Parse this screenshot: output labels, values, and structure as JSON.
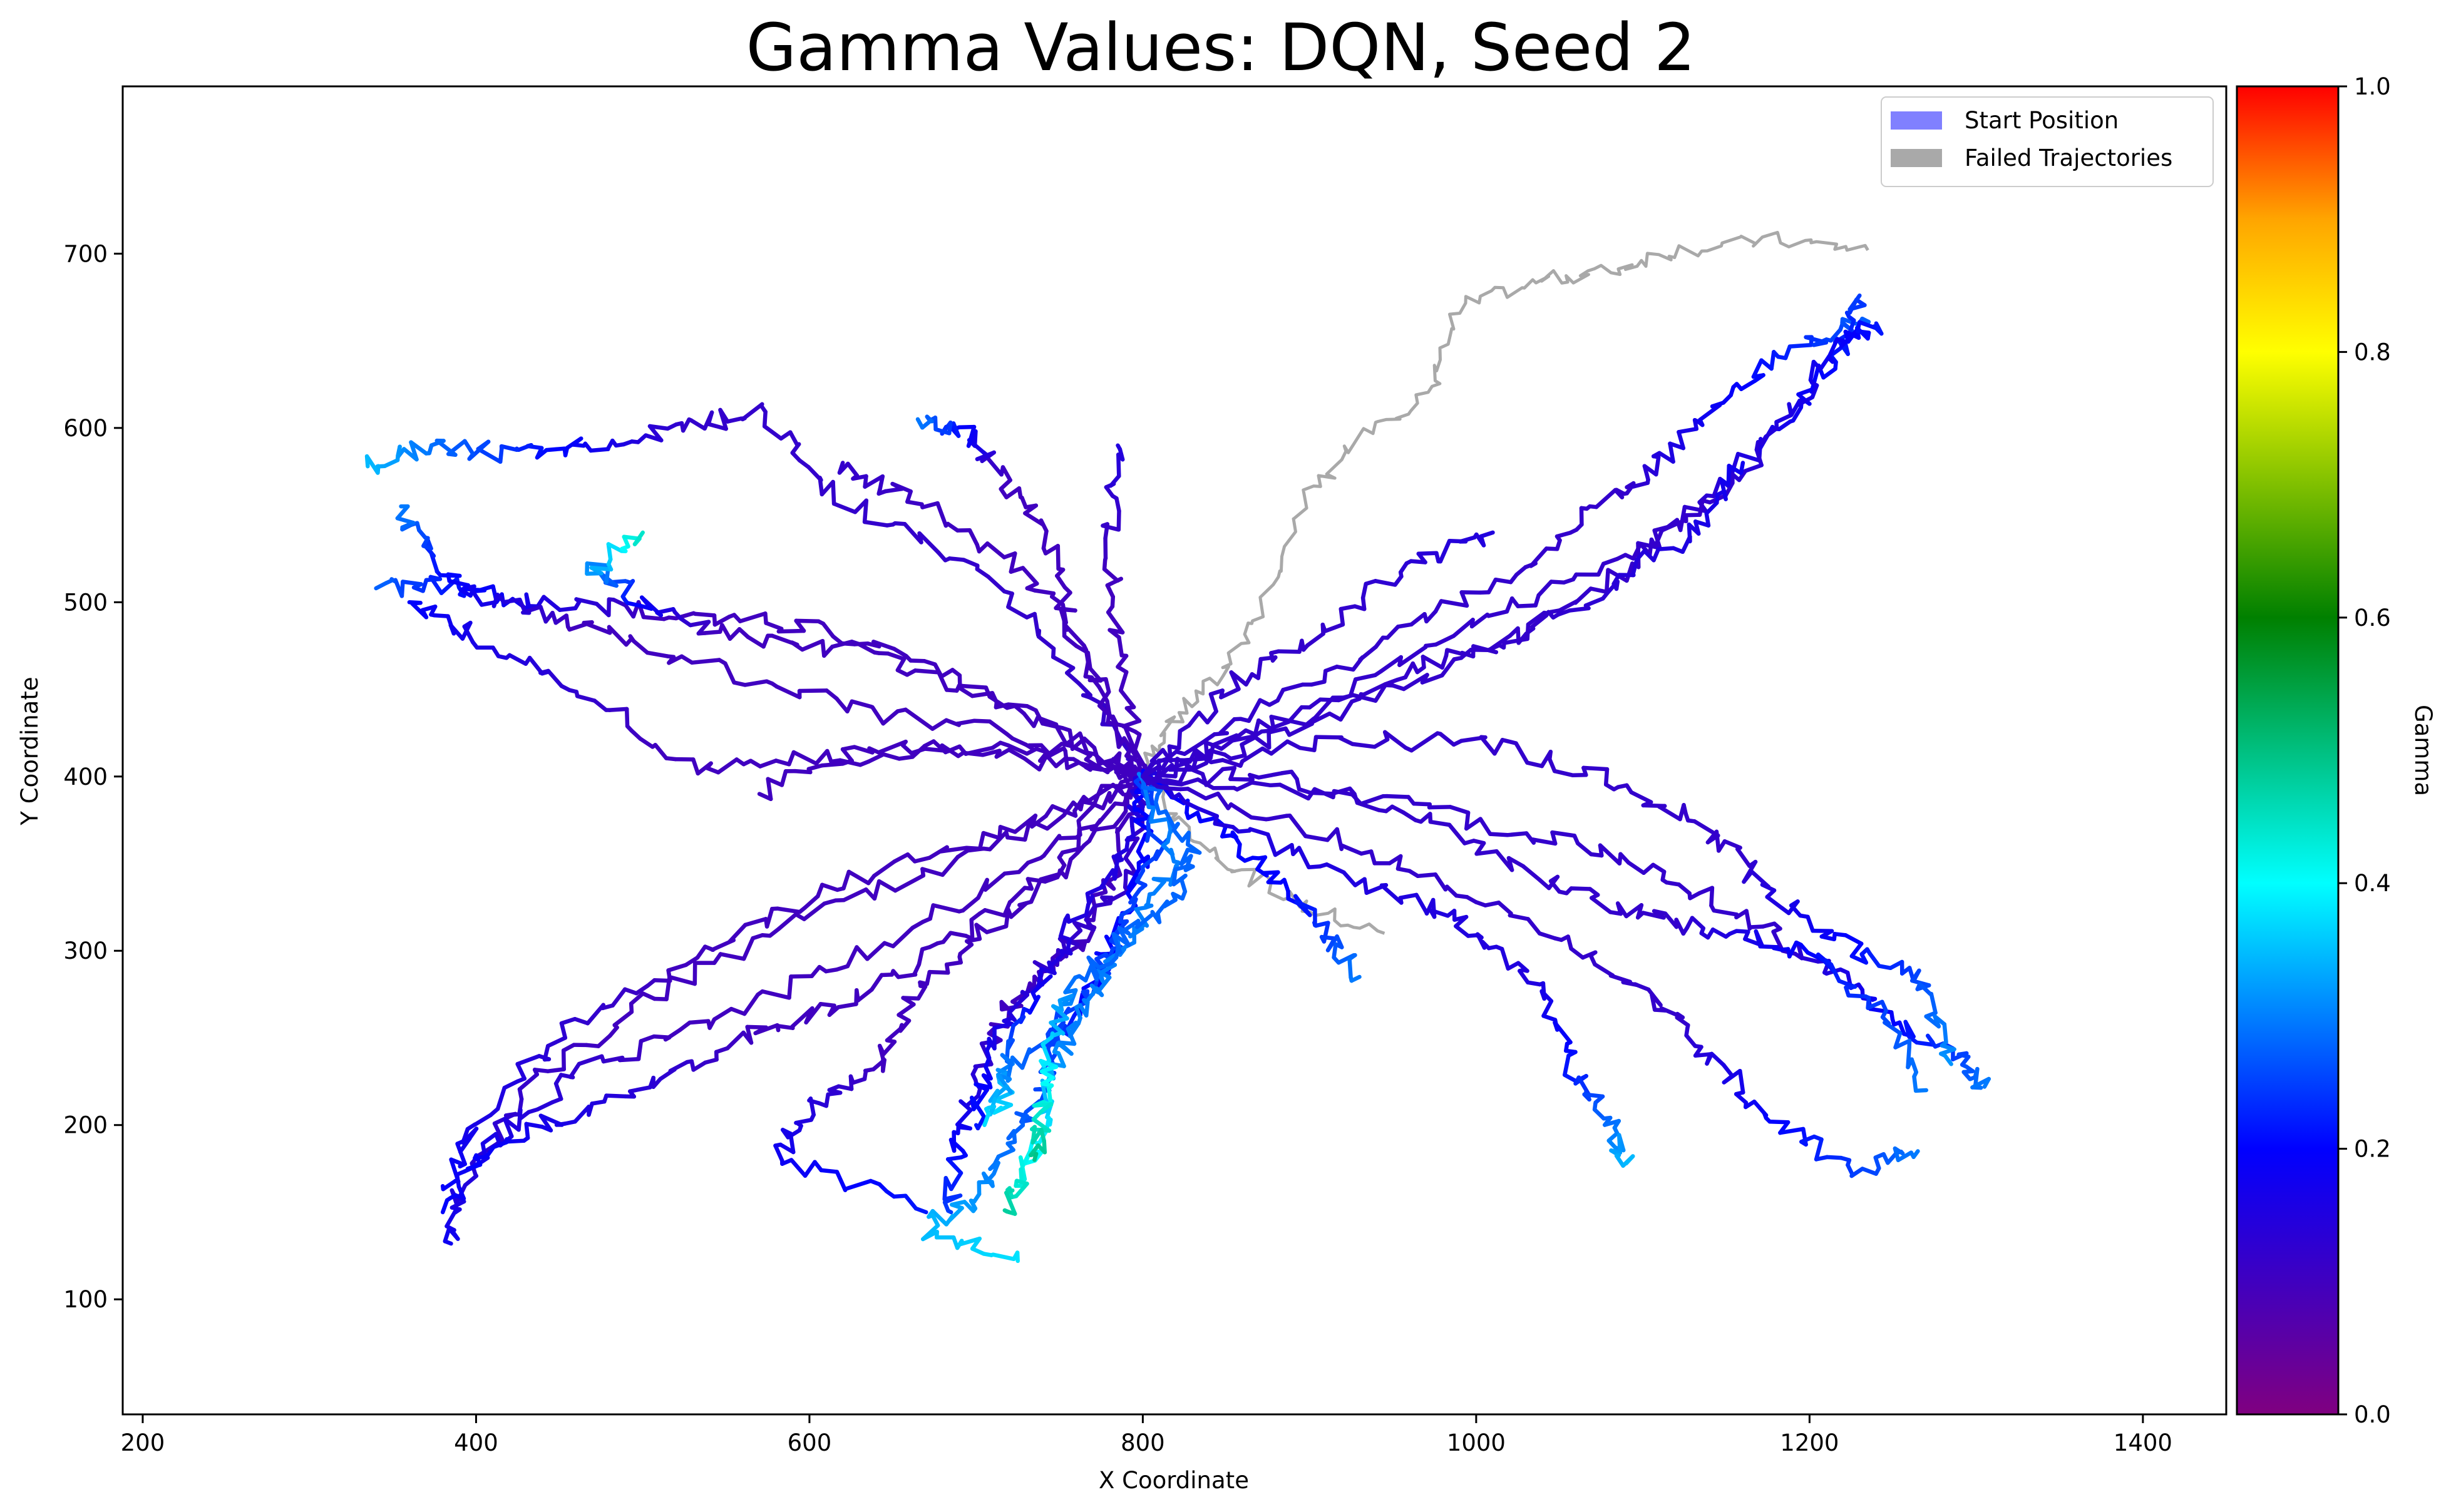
{
  "chart_data": {
    "type": "line",
    "title": "Gamma Values: DQN, Seed 2",
    "xlabel": "X Coordinate",
    "ylabel": "Y Coordinate",
    "xlim": [
      188,
      1450
    ],
    "ylim": [
      34,
      796
    ],
    "xticks": [
      200,
      400,
      600,
      800,
      1000,
      1200,
      1400
    ],
    "yticks": [
      100,
      200,
      300,
      400,
      500,
      600,
      700
    ],
    "grid": false,
    "legend": {
      "placement": "top-right",
      "entries": [
        {
          "label": "Start Position",
          "color": "#8080ff"
        },
        {
          "label": "Failed Trajectories",
          "color": "#a9a9a9"
        }
      ]
    },
    "colorbar": {
      "label": "Gamma",
      "range": [
        0,
        1
      ],
      "ticks": [
        "0.0",
        "0.2",
        "0.4",
        "0.6",
        "0.8",
        "1.0"
      ],
      "colormap": [
        {
          "v": 0.0,
          "color": "#800080"
        },
        {
          "v": 0.2,
          "color": "#0000ff"
        },
        {
          "v": 0.4,
          "color": "#00ffff"
        },
        {
          "v": 0.6,
          "color": "#008000"
        },
        {
          "v": 0.8,
          "color": "#ffff00"
        },
        {
          "v": 0.9,
          "color": "#ffa500"
        },
        {
          "v": 1.0,
          "color": "#ff0000"
        }
      ]
    },
    "start": [
      800,
      400
    ],
    "failed_trajectories": [
      {
        "points": [
          [
            800,
            400
          ],
          [
            815,
            430
          ],
          [
            845,
            455
          ],
          [
            870,
            495
          ],
          [
            900,
            560
          ],
          [
            935,
            600
          ],
          [
            975,
            620
          ],
          [
            990,
            670
          ],
          [
            1040,
            685
          ],
          [
            1080,
            690
          ],
          [
            1120,
            702
          ],
          [
            1180,
            708
          ],
          [
            1235,
            702
          ]
        ]
      },
      {
        "points": [
          [
            800,
            400
          ],
          [
            825,
            370
          ],
          [
            860,
            345
          ],
          [
            900,
            325
          ],
          [
            945,
            310
          ]
        ]
      }
    ],
    "trajectories": [
      {
        "gamma_start": 0.12,
        "gamma_end": 0.35,
        "points": [
          [
            800,
            400
          ],
          [
            760,
            460
          ],
          [
            700,
            520
          ],
          [
            620,
            560
          ],
          [
            570,
            610
          ],
          [
            520,
            600
          ],
          [
            470,
            590
          ],
          [
            420,
            585
          ],
          [
            370,
            590
          ],
          [
            335,
            578
          ]
        ]
      },
      {
        "gamma_start": 0.1,
        "gamma_end": 0.28,
        "points": [
          [
            800,
            400
          ],
          [
            740,
            430
          ],
          [
            660,
            470
          ],
          [
            580,
            490
          ],
          [
            500,
            495
          ],
          [
            430,
            500
          ],
          [
            380,
            510
          ],
          [
            340,
            508
          ]
        ]
      },
      {
        "gamma_start": 0.1,
        "gamma_end": 0.3,
        "points": [
          [
            800,
            400
          ],
          [
            720,
            425
          ],
          [
            620,
            440
          ],
          [
            520,
            470
          ],
          [
            450,
            490
          ],
          [
            400,
            505
          ],
          [
            370,
            530
          ],
          [
            355,
            555
          ]
        ]
      },
      {
        "gamma_start": 0.1,
        "gamma_end": 0.45,
        "points": [
          [
            800,
            400
          ],
          [
            720,
            440
          ],
          [
            640,
            470
          ],
          [
            560,
            480
          ],
          [
            500,
            500
          ],
          [
            470,
            520
          ],
          [
            500,
            540
          ]
        ]
      },
      {
        "gamma_start": 0.1,
        "gamma_end": 0.2,
        "points": [
          [
            800,
            400
          ],
          [
            720,
            420
          ],
          [
            620,
            410
          ],
          [
            530,
            405
          ],
          [
            460,
            450
          ],
          [
            400,
            480
          ],
          [
            360,
            500
          ]
        ]
      },
      {
        "gamma_start": 0.1,
        "gamma_end": 0.3,
        "points": [
          [
            800,
            400
          ],
          [
            760,
            480
          ],
          [
            740,
            540
          ],
          [
            710,
            580
          ],
          [
            690,
            600
          ],
          [
            665,
            605
          ]
        ]
      },
      {
        "gamma_start": 0.1,
        "gamma_end": 0.15,
        "points": [
          [
            800,
            400
          ],
          [
            785,
            470
          ],
          [
            780,
            540
          ],
          [
            785,
            590
          ]
        ]
      },
      {
        "gamma_start": 0.1,
        "gamma_end": 0.12,
        "points": [
          [
            800,
            400
          ],
          [
            770,
            460
          ],
          [
            730,
            520
          ],
          [
            660,
            560
          ],
          [
            620,
            580
          ]
        ]
      },
      {
        "gamma_start": 0.1,
        "gamma_end": 0.1,
        "points": [
          [
            800,
            400
          ],
          [
            730,
            410
          ],
          [
            640,
            420
          ],
          [
            570,
            390
          ]
        ]
      },
      {
        "gamma_start": 0.1,
        "gamma_end": 0.2,
        "points": [
          [
            800,
            400
          ],
          [
            720,
            370
          ],
          [
            620,
            340
          ],
          [
            540,
            300
          ],
          [
            460,
            260
          ],
          [
            400,
            200
          ],
          [
            380,
            165
          ]
        ]
      },
      {
        "gamma_start": 0.1,
        "gamma_end": 0.18,
        "points": [
          [
            800,
            400
          ],
          [
            710,
            360
          ],
          [
            600,
            320
          ],
          [
            500,
            270
          ],
          [
            430,
            220
          ],
          [
            390,
            160
          ],
          [
            385,
            132
          ]
        ]
      },
      {
        "gamma_start": 0.1,
        "gamma_end": 0.2,
        "points": [
          [
            800,
            400
          ],
          [
            730,
            350
          ],
          [
            640,
            300
          ],
          [
            540,
            260
          ],
          [
            460,
            230
          ],
          [
            410,
            190
          ],
          [
            380,
            150
          ]
        ]
      },
      {
        "gamma_start": 0.1,
        "gamma_end": 0.2,
        "points": [
          [
            800,
            400
          ],
          [
            740,
            340
          ],
          [
            680,
            300
          ],
          [
            620,
            270
          ],
          [
            560,
            250
          ],
          [
            500,
            220
          ],
          [
            440,
            200
          ],
          [
            395,
            175
          ]
        ]
      },
      {
        "gamma_start": 0.1,
        "gamma_end": 0.22,
        "points": [
          [
            800,
            400
          ],
          [
            760,
            350
          ],
          [
            700,
            310
          ],
          [
            660,
            270
          ],
          [
            640,
            230
          ],
          [
            600,
            210
          ],
          [
            580,
            180
          ],
          [
            670,
            150
          ]
        ]
      },
      {
        "gamma_start": 0.1,
        "gamma_end": 0.25,
        "points": [
          [
            800,
            400
          ],
          [
            780,
            340
          ],
          [
            760,
            300
          ],
          [
            720,
            270
          ],
          [
            700,
            230
          ],
          [
            690,
            190
          ],
          [
            685,
            150
          ]
        ]
      },
      {
        "gamma_start": 0.12,
        "gamma_end": 0.22,
        "points": [
          [
            800,
            400
          ],
          [
            790,
            340
          ],
          [
            760,
            310
          ],
          [
            730,
            280
          ],
          [
            710,
            240
          ],
          [
            700,
            200
          ]
        ]
      },
      {
        "gamma_start": 0.15,
        "gamma_end": 0.38,
        "points": [
          [
            800,
            400
          ],
          [
            790,
            360
          ],
          [
            760,
            320
          ],
          [
            740,
            280
          ],
          [
            720,
            240
          ],
          [
            715,
            210
          ]
        ]
      },
      {
        "gamma_start": 0.2,
        "gamma_end": 0.38,
        "points": [
          [
            800,
            400
          ],
          [
            800,
            350
          ],
          [
            780,
            300
          ],
          [
            760,
            260
          ],
          [
            720,
            230
          ],
          [
            705,
            200
          ]
        ]
      },
      {
        "gamma_start": 0.25,
        "gamma_end": 0.38,
        "points": [
          [
            800,
            400
          ],
          [
            810,
            360
          ],
          [
            790,
            320
          ],
          [
            770,
            280
          ],
          [
            745,
            250
          ],
          [
            740,
            220
          ],
          [
            720,
            190
          ],
          [
            700,
            160
          ],
          [
            670,
            140
          ],
          [
            725,
            122
          ]
        ]
      },
      {
        "gamma_start": 0.3,
        "gamma_end": 0.48,
        "points": [
          [
            800,
            400
          ],
          [
            820,
            350
          ],
          [
            800,
            320
          ],
          [
            780,
            290
          ],
          [
            760,
            260
          ],
          [
            745,
            230
          ],
          [
            740,
            200
          ],
          [
            730,
            170
          ],
          [
            720,
            150
          ]
        ]
      },
      {
        "gamma_start": 0.28,
        "gamma_end": 0.5,
        "points": [
          [
            800,
            400
          ],
          [
            830,
            360
          ],
          [
            820,
            330
          ],
          [
            790,
            310
          ],
          [
            760,
            280
          ],
          [
            745,
            250
          ],
          [
            740,
            210
          ],
          [
            735,
            180
          ]
        ]
      },
      {
        "gamma_start": 0.2,
        "gamma_end": 0.3,
        "points": [
          [
            800,
            400
          ],
          [
            850,
            370
          ],
          [
            880,
            340
          ],
          [
            910,
            310
          ],
          [
            930,
            285
          ]
        ]
      },
      {
        "gamma_start": 0.15,
        "gamma_end": 0.35,
        "points": [
          [
            800,
            400
          ],
          [
            880,
            360
          ],
          [
            960,
            330
          ],
          [
            1000,
            310
          ],
          [
            1040,
            280
          ],
          [
            1060,
            230
          ],
          [
            1080,
            200
          ],
          [
            1090,
            178
          ]
        ]
      },
      {
        "gamma_start": 0.12,
        "gamma_end": 0.3,
        "points": [
          [
            800,
            400
          ],
          [
            900,
            370
          ],
          [
            980,
            340
          ],
          [
            1060,
            300
          ],
          [
            1110,
            270
          ],
          [
            1140,
            240
          ],
          [
            1180,
            200
          ],
          [
            1230,
            175
          ],
          [
            1265,
            185
          ]
        ]
      },
      {
        "gamma_start": 0.12,
        "gamma_end": 0.3,
        "points": [
          [
            800,
            400
          ],
          [
            920,
            390
          ],
          [
            1020,
            370
          ],
          [
            1100,
            350
          ],
          [
            1160,
            320
          ],
          [
            1210,
            290
          ],
          [
            1250,
            260
          ],
          [
            1290,
            240
          ],
          [
            1305,
            222
          ]
        ]
      },
      {
        "gamma_start": 0.12,
        "gamma_end": 0.32,
        "points": [
          [
            800,
            400
          ],
          [
            900,
            420
          ],
          [
            1000,
            420
          ],
          [
            1080,
            400
          ],
          [
            1140,
            370
          ],
          [
            1180,
            330
          ],
          [
            1230,
            300
          ],
          [
            1270,
            280
          ],
          [
            1285,
            235
          ]
        ]
      },
      {
        "gamma_start": 0.12,
        "gamma_end": 0.3,
        "points": [
          [
            800,
            400
          ],
          [
            880,
            400
          ],
          [
            960,
            380
          ],
          [
            1040,
            340
          ],
          [
            1100,
            320
          ],
          [
            1150,
            310
          ],
          [
            1200,
            300
          ],
          [
            1240,
            270
          ],
          [
            1270,
            220
          ]
        ]
      },
      {
        "gamma_start": 0.12,
        "gamma_end": 0.28,
        "points": [
          [
            800,
            400
          ],
          [
            870,
            440
          ],
          [
            950,
            480
          ],
          [
            1030,
            520
          ],
          [
            1080,
            560
          ],
          [
            1110,
            580
          ],
          [
            1150,
            620
          ],
          [
            1200,
            650
          ],
          [
            1235,
            660
          ]
        ]
      },
      {
        "gamma_start": 0.12,
        "gamma_end": 0.25,
        "points": [
          [
            800,
            400
          ],
          [
            880,
            430
          ],
          [
            980,
            460
          ],
          [
            1060,
            500
          ],
          [
            1130,
            550
          ],
          [
            1180,
            600
          ],
          [
            1215,
            640
          ],
          [
            1230,
            676
          ]
        ]
      },
      {
        "gamma_start": 0.12,
        "gamma_end": 0.22,
        "points": [
          [
            800,
            400
          ],
          [
            900,
            440
          ],
          [
            1000,
            490
          ],
          [
            1080,
            520
          ],
          [
            1150,
            560
          ],
          [
            1190,
            610
          ],
          [
            1220,
            650
          ],
          [
            1240,
            660
          ]
        ]
      },
      {
        "gamma_start": 0.12,
        "gamma_end": 0.18,
        "points": [
          [
            800,
            400
          ],
          [
            880,
            420
          ],
          [
            960,
            460
          ],
          [
            1020,
            480
          ],
          [
            1080,
            510
          ],
          [
            1130,
            540
          ],
          [
            1160,
            580
          ]
        ]
      },
      {
        "gamma_start": 0.12,
        "gamma_end": 0.15,
        "points": [
          [
            800,
            400
          ],
          [
            850,
            450
          ],
          [
            900,
            480
          ],
          [
            960,
            520
          ],
          [
            1010,
            540
          ]
        ]
      }
    ]
  }
}
